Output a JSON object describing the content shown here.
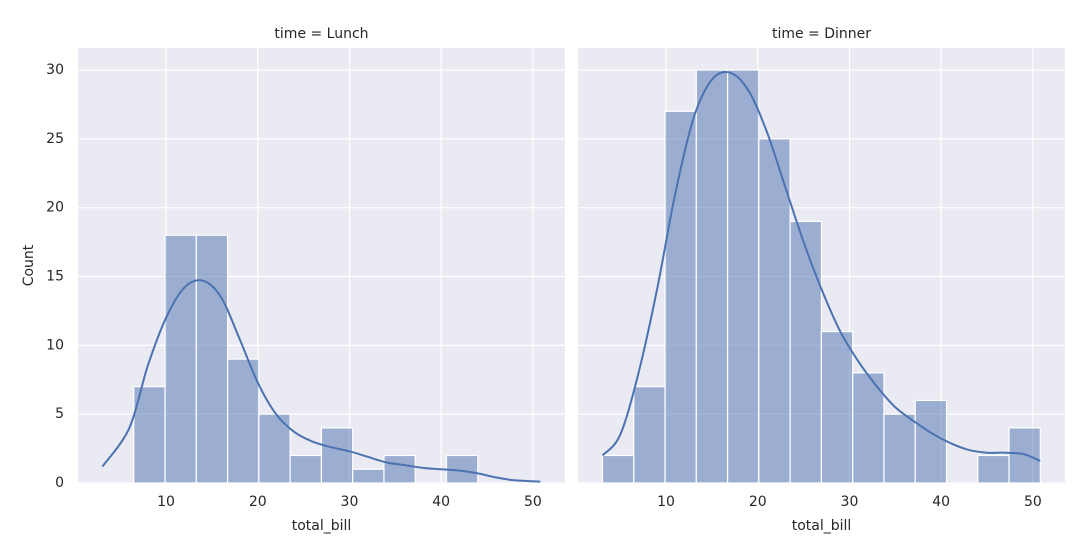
{
  "chart_data": [
    {
      "type": "histogram",
      "title": "time = Lunch",
      "x_label": "total_bill",
      "y_label": "Count",
      "bins": [
        3.07,
        6.48,
        9.89,
        13.3,
        16.71,
        20.12,
        23.53,
        26.94,
        30.35,
        33.76,
        37.17,
        40.58,
        43.99,
        47.4,
        50.81
      ],
      "values": [
        0,
        7,
        18,
        18,
        9,
        5,
        2,
        4,
        1,
        2,
        0,
        2,
        0,
        0
      ],
      "kde_x": [
        3.07,
        6,
        8,
        10,
        12,
        14,
        16,
        18,
        20,
        22,
        24,
        26,
        28,
        30,
        32,
        34,
        36,
        38,
        40,
        42,
        44,
        46,
        48,
        50.81
      ],
      "kde_y": [
        1.2,
        4,
        8.5,
        12,
        14.2,
        14.7,
        13.5,
        10.5,
        7.3,
        5,
        3.7,
        3,
        2.6,
        2.3,
        1.9,
        1.5,
        1.3,
        1.1,
        1.0,
        0.9,
        0.7,
        0.4,
        0.2,
        0.1
      ],
      "color": "#4c72b0",
      "xlim": [
        0.4,
        53.5
      ],
      "ylim": [
        0,
        31.6
      ],
      "xticks": [
        10,
        20,
        30,
        40,
        50
      ],
      "yticks": [
        0,
        5,
        10,
        15,
        20,
        25,
        30
      ],
      "grid": true
    },
    {
      "type": "histogram",
      "title": "time = Dinner",
      "x_label": "total_bill",
      "bins": [
        3.07,
        6.48,
        9.89,
        13.3,
        16.71,
        20.12,
        23.53,
        26.94,
        30.35,
        33.76,
        37.17,
        40.58,
        43.99,
        47.4,
        50.81
      ],
      "values": [
        2,
        7,
        27,
        30,
        30,
        25,
        19,
        11,
        8,
        5,
        6,
        0,
        2,
        4
      ],
      "kde_x": [
        3.07,
        5,
        7,
        9,
        11,
        13,
        15,
        17,
        19,
        21,
        23,
        25,
        27,
        29,
        31,
        33,
        35,
        37,
        39,
        41,
        43,
        45,
        47,
        49,
        50.81
      ],
      "kde_y": [
        2,
        3.5,
        8,
        14,
        21,
        26.5,
        29.3,
        29.8,
        28.5,
        25.5,
        21.5,
        17.5,
        14,
        11,
        8.8,
        7,
        5.5,
        4.5,
        3.6,
        2.9,
        2.4,
        2.2,
        2.2,
        2.1,
        1.6
      ],
      "color": "#4c72b0",
      "xlim": [
        0.4,
        53.5
      ],
      "ylim": [
        0,
        31.6
      ],
      "xticks": [
        10,
        20,
        30,
        40,
        50
      ],
      "yticks": [
        0,
        5,
        10,
        15,
        20,
        25,
        30
      ],
      "grid": true
    }
  ]
}
